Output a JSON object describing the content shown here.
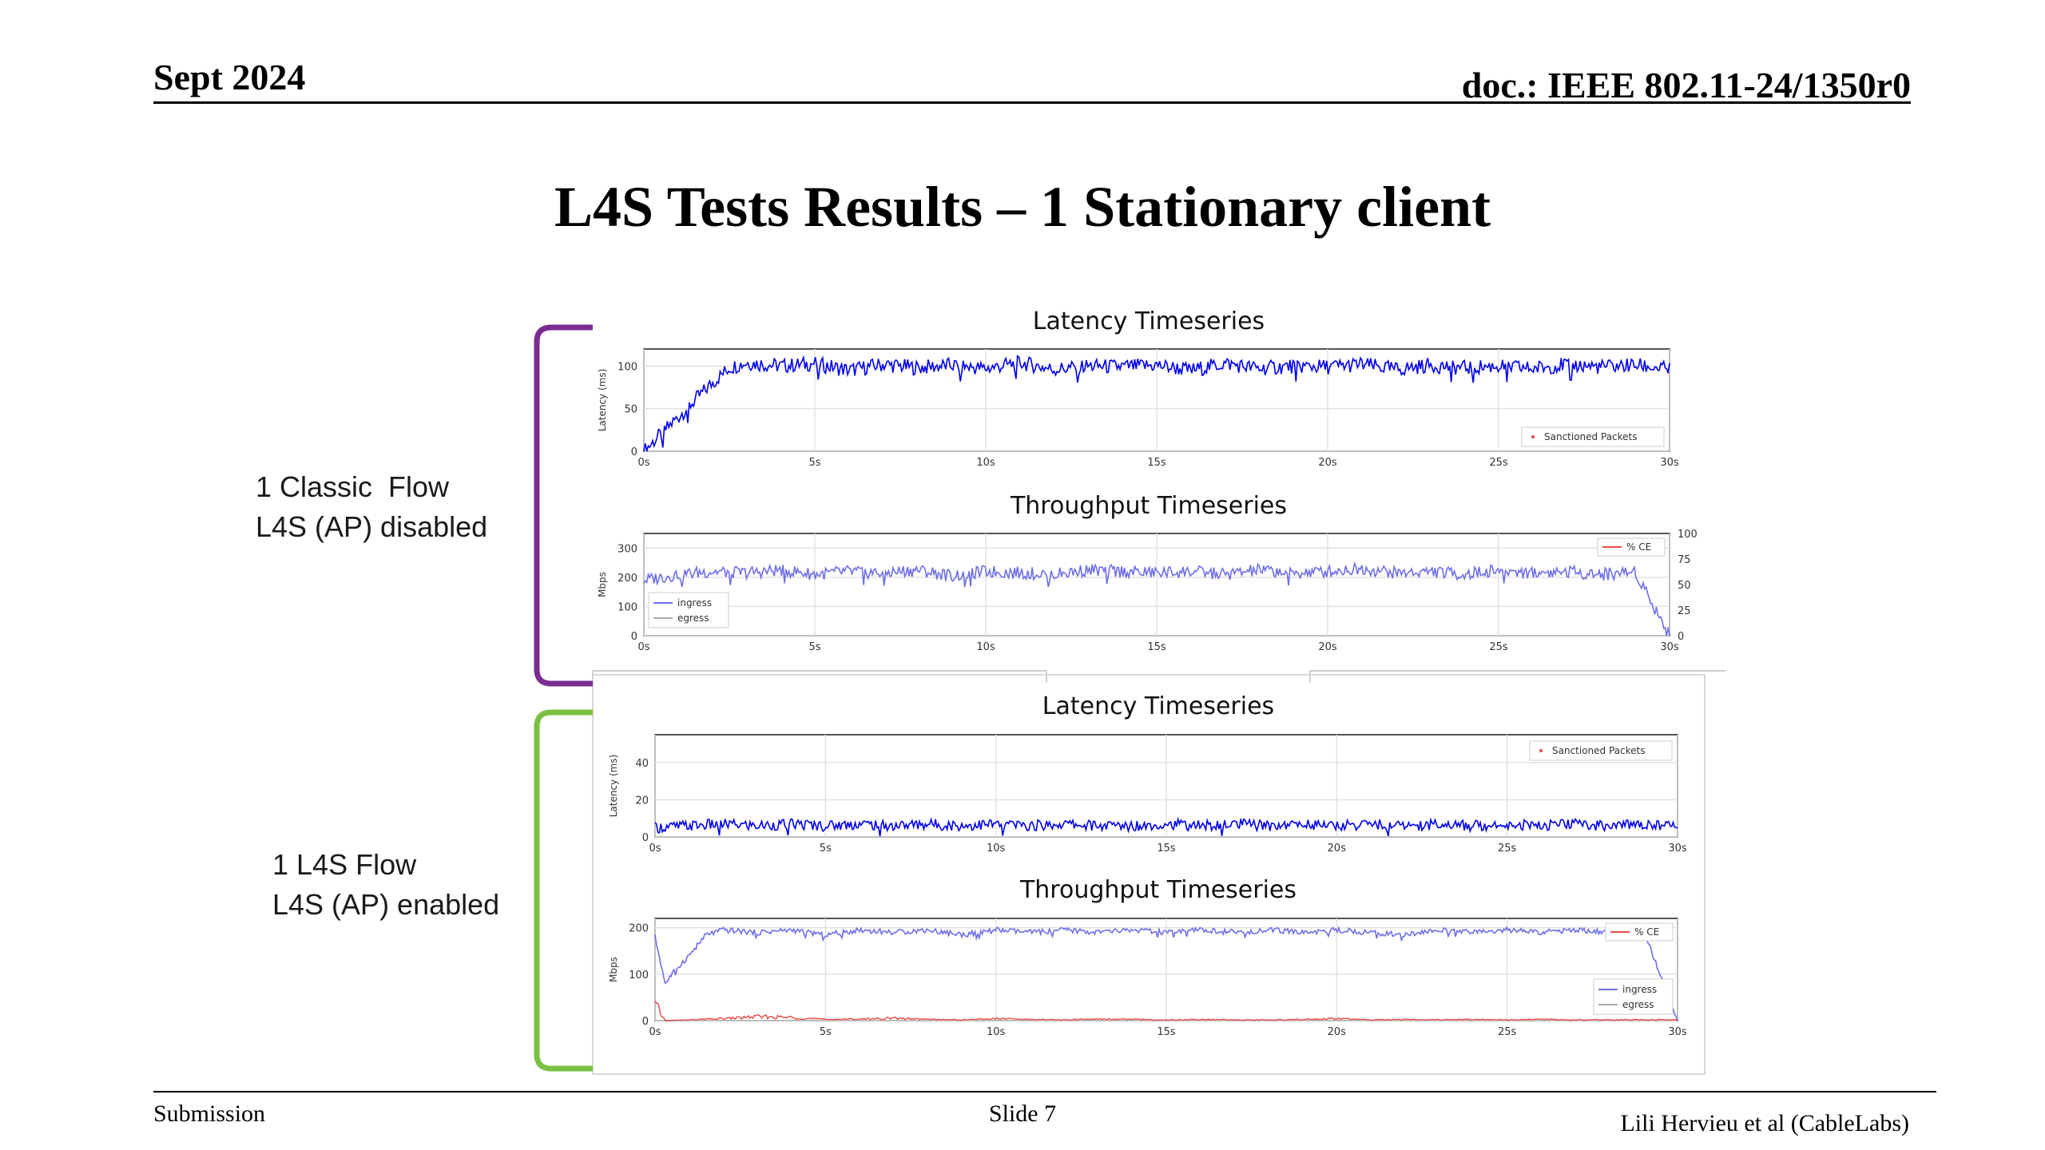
{
  "header": {
    "date": "Sept 2024",
    "doc": "doc.: IEEE 802.11-24/1350r0"
  },
  "title": "L4S Tests Results – 1 Stationary client",
  "groups": {
    "classic": {
      "line1": "1 Classic  Flow",
      "line2": "L4S (AP) disabled",
      "bracket_color": "#7b2c91"
    },
    "l4s": {
      "line1": "1 L4S Flow",
      "line2": "L4S (AP) enabled",
      "bracket_color": "#7ac143"
    }
  },
  "footer": {
    "left": "Submission",
    "center": "Slide 7",
    "right": "Lili Hervieu et al (CableLabs)"
  },
  "chart_data": [
    {
      "id": "classic-latency",
      "type": "line",
      "title": "Latency Timeseries",
      "xlabel": "",
      "ylabel": "Latency (ms)",
      "xlim": [
        0,
        30
      ],
      "ylim": [
        0,
        120
      ],
      "xticks": [
        0,
        5,
        10,
        15,
        20,
        25,
        30
      ],
      "xtick_labels": [
        "0s",
        "5s",
        "10s",
        "15s",
        "20s",
        "25s",
        "30s"
      ],
      "yticks": [
        0,
        50,
        100
      ],
      "grid": true,
      "legend": [
        "Sanctioned Packets"
      ],
      "legend_position": "bottom-right",
      "series": [
        {
          "name": "",
          "color": "#0000ee",
          "x": [
            0,
            0.5,
            1,
            1.5,
            2,
            2.5,
            3,
            4,
            5,
            6,
            7,
            8,
            9,
            10,
            11,
            12,
            13,
            14,
            15,
            16,
            17,
            18,
            19,
            20,
            21,
            22,
            23,
            24,
            25,
            26,
            27,
            28,
            29,
            30
          ],
          "y": [
            0,
            20,
            40,
            60,
            80,
            98,
            104,
            100,
            103,
            95,
            102,
            98,
            101,
            97,
            104,
            96,
            100,
            99,
            101,
            95,
            103,
            97,
            100,
            99,
            102,
            96,
            101,
            98,
            100,
            97,
            102,
            99,
            101,
            96
          ]
        }
      ]
    },
    {
      "id": "classic-throughput",
      "type": "line",
      "title": "Throughput Timeseries",
      "xlabel": "",
      "ylabel": "Mbps",
      "xlim": [
        0,
        30
      ],
      "ylim": [
        0,
        350
      ],
      "y2lim": [
        0,
        100
      ],
      "xticks": [
        0,
        5,
        10,
        15,
        20,
        25,
        30
      ],
      "xtick_labels": [
        "0s",
        "5s",
        "10s",
        "15s",
        "20s",
        "25s",
        "30s"
      ],
      "yticks": [
        0,
        100,
        200,
        300
      ],
      "y2ticks": [
        0,
        25,
        50,
        75,
        100
      ],
      "grid": true,
      "legend": [
        "ingress",
        "egress",
        "% CE"
      ],
      "series": [
        {
          "name": "ingress",
          "color": "#6f6fe8",
          "x": [
            0,
            1,
            2,
            3,
            4,
            5,
            6,
            7,
            8,
            9,
            10,
            11,
            12,
            13,
            14,
            15,
            16,
            17,
            18,
            19,
            20,
            21,
            22,
            23,
            24,
            25,
            26,
            27,
            28,
            29,
            30
          ],
          "y": [
            190,
            210,
            220,
            215,
            225,
            210,
            220,
            215,
            225,
            205,
            220,
            215,
            210,
            225,
            220,
            215,
            220,
            210,
            225,
            215,
            220,
            230,
            215,
            220,
            210,
            225,
            215,
            220,
            210,
            220,
            0
          ]
        }
      ]
    },
    {
      "id": "l4s-latency",
      "type": "line",
      "title": "Latency Timeseries",
      "xlabel": "",
      "ylabel": "Latency (ms)",
      "xlim": [
        0,
        30
      ],
      "ylim": [
        0,
        55
      ],
      "xticks": [
        0,
        5,
        10,
        15,
        20,
        25,
        30
      ],
      "xtick_labels": [
        "0s",
        "5s",
        "10s",
        "15s",
        "20s",
        "25s",
        "30s"
      ],
      "yticks": [
        0,
        20,
        40
      ],
      "grid": true,
      "legend": [
        "Sanctioned Packets"
      ],
      "legend_position": "top-right",
      "series": [
        {
          "name": "",
          "color": "#0000ee",
          "x": [
            0,
            1,
            2,
            3,
            4,
            5,
            6,
            7,
            8,
            9,
            10,
            11,
            12,
            13,
            14,
            15,
            16,
            17,
            18,
            19,
            20,
            21,
            22,
            23,
            24,
            25,
            26,
            27,
            28,
            29,
            30
          ],
          "y": [
            5,
            6,
            7,
            6,
            7,
            6,
            7,
            6,
            7,
            6,
            7,
            6,
            7,
            6,
            6,
            7,
            6,
            7,
            6,
            7,
            6,
            7,
            6,
            7,
            6,
            7,
            6,
            7,
            6,
            7,
            6
          ]
        }
      ]
    },
    {
      "id": "l4s-throughput",
      "type": "line",
      "title": "Throughput Timeseries",
      "xlabel": "",
      "ylabel": "Mbps",
      "xlim": [
        0,
        30
      ],
      "ylim": [
        0,
        220
      ],
      "xticks": [
        0,
        5,
        10,
        15,
        20,
        25,
        30
      ],
      "xtick_labels": [
        "0s",
        "5s",
        "10s",
        "15s",
        "20s",
        "25s",
        "30s"
      ],
      "yticks": [
        0,
        100,
        200
      ],
      "grid": true,
      "legend": [
        "% CE",
        "ingress",
        "egress"
      ],
      "series": [
        {
          "name": "ingress",
          "color": "#6f6fe8",
          "x": [
            0,
            0.3,
            0.6,
            1,
            1.5,
            2,
            3,
            4,
            5,
            6,
            7,
            8,
            9,
            10,
            11,
            12,
            13,
            14,
            15,
            16,
            17,
            18,
            19,
            20,
            21,
            22,
            23,
            24,
            25,
            26,
            27,
            28,
            29,
            30
          ],
          "y": [
            180,
            80,
            110,
            140,
            185,
            195,
            190,
            195,
            185,
            195,
            190,
            195,
            185,
            195,
            190,
            195,
            190,
            195,
            190,
            195,
            190,
            195,
            190,
            195,
            190,
            185,
            195,
            190,
            195,
            190,
            195,
            190,
            195,
            0
          ]
        },
        {
          "name": "% CE",
          "color": "#e84848",
          "x": [
            0,
            0.3,
            1,
            2,
            3,
            4,
            5,
            6,
            7,
            8,
            9,
            10,
            11,
            12,
            13,
            14,
            15,
            16,
            17,
            18,
            19,
            20,
            21,
            22,
            23,
            24,
            25,
            26,
            27,
            28,
            29,
            30
          ],
          "y": [
            40,
            0,
            2,
            5,
            10,
            8,
            3,
            4,
            6,
            3,
            2,
            5,
            3,
            2,
            4,
            3,
            2,
            3,
            2,
            2,
            3,
            5,
            2,
            3,
            2,
            3,
            2,
            3,
            2,
            2,
            2,
            2
          ]
        }
      ]
    }
  ]
}
